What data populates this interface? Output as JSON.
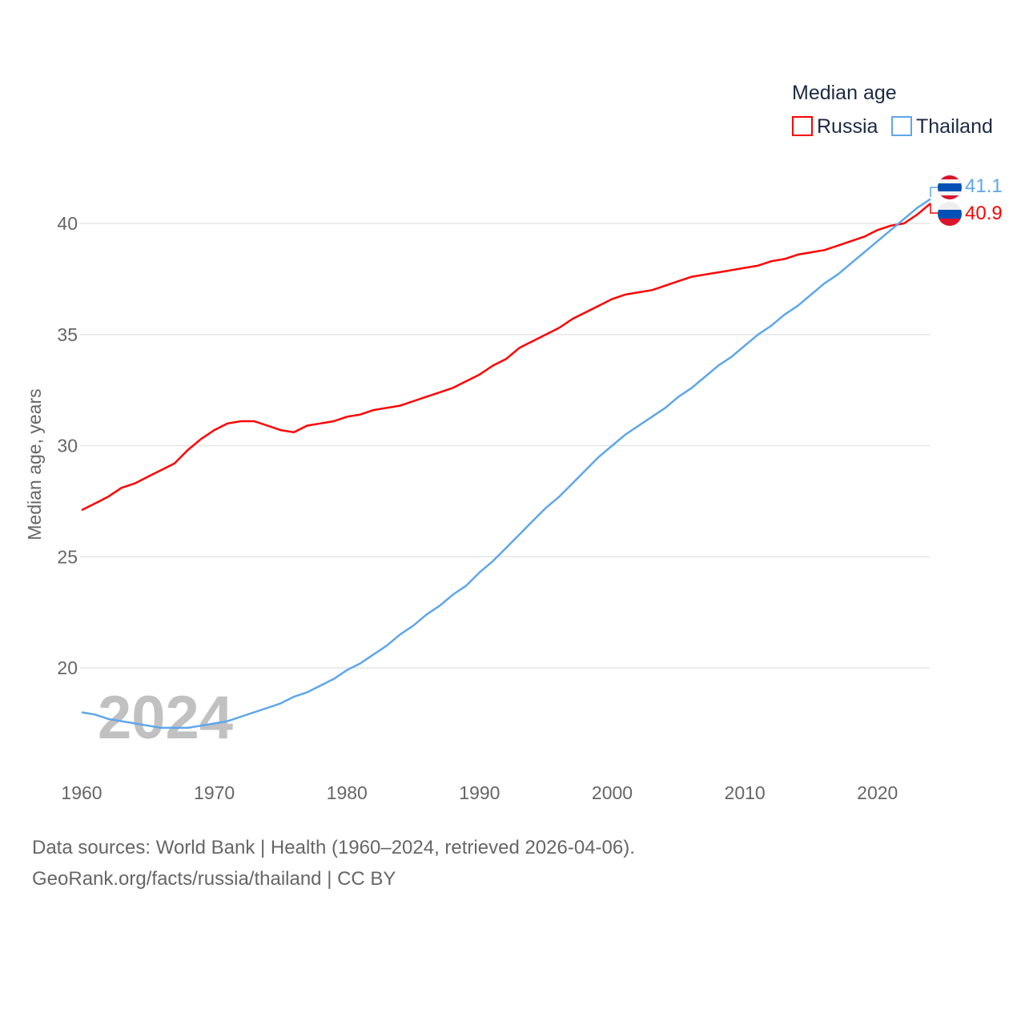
{
  "chart_data": {
    "type": "line",
    "title": "",
    "xlabel": "",
    "ylabel": "Median age, years",
    "xlim": [
      1960,
      2024
    ],
    "ylim": [
      16.5,
      42
    ],
    "grid": true,
    "x_ticks": [
      "1960",
      "1970",
      "1980",
      "1990",
      "2000",
      "2010",
      "2020"
    ],
    "y_ticks": [
      "20",
      "25",
      "30",
      "35",
      "40"
    ],
    "legend": {
      "title": "Median age",
      "placement": "top-right"
    },
    "year_watermark": "2024",
    "x": [
      1960,
      1961,
      1962,
      1963,
      1964,
      1965,
      1966,
      1967,
      1968,
      1969,
      1970,
      1971,
      1972,
      1973,
      1974,
      1975,
      1976,
      1977,
      1978,
      1979,
      1980,
      1981,
      1982,
      1983,
      1984,
      1985,
      1986,
      1987,
      1988,
      1989,
      1990,
      1991,
      1992,
      1993,
      1994,
      1995,
      1996,
      1997,
      1998,
      1999,
      2000,
      2001,
      2002,
      2003,
      2004,
      2005,
      2006,
      2007,
      2008,
      2009,
      2010,
      2011,
      2012,
      2013,
      2014,
      2015,
      2016,
      2017,
      2018,
      2019,
      2020,
      2021,
      2022,
      2023,
      2024
    ],
    "series": [
      {
        "name": "Russia",
        "color": "#ff0000",
        "end_label": "40.9",
        "values": [
          27.1,
          27.4,
          27.7,
          28.1,
          28.3,
          28.6,
          28.9,
          29.2,
          29.8,
          30.3,
          30.7,
          31.0,
          31.1,
          31.1,
          30.9,
          30.7,
          30.6,
          30.9,
          31.0,
          31.1,
          31.3,
          31.4,
          31.6,
          31.7,
          31.8,
          32.0,
          32.2,
          32.4,
          32.6,
          32.9,
          33.2,
          33.6,
          33.9,
          34.4,
          34.7,
          35.0,
          35.3,
          35.7,
          36.0,
          36.3,
          36.6,
          36.8,
          36.9,
          37.0,
          37.2,
          37.4,
          37.6,
          37.7,
          37.8,
          37.9,
          38.0,
          38.1,
          38.3,
          38.4,
          38.6,
          38.7,
          38.8,
          39.0,
          39.2,
          39.4,
          39.7,
          39.9,
          40.0,
          40.4,
          40.9
        ]
      },
      {
        "name": "Thailand",
        "color": "#5ea6ec",
        "end_label": "41.1",
        "values": [
          18.0,
          17.9,
          17.7,
          17.6,
          17.5,
          17.4,
          17.3,
          17.3,
          17.3,
          17.4,
          17.5,
          17.6,
          17.8,
          18.0,
          18.2,
          18.4,
          18.7,
          18.9,
          19.2,
          19.5,
          19.9,
          20.2,
          20.6,
          21.0,
          21.5,
          21.9,
          22.4,
          22.8,
          23.3,
          23.7,
          24.3,
          24.8,
          25.4,
          26.0,
          26.6,
          27.2,
          27.7,
          28.3,
          28.9,
          29.5,
          30.0,
          30.5,
          30.9,
          31.3,
          31.7,
          32.2,
          32.6,
          33.1,
          33.6,
          34.0,
          34.5,
          35.0,
          35.4,
          35.9,
          36.3,
          36.8,
          37.3,
          37.7,
          38.2,
          38.7,
          39.2,
          39.7,
          40.2,
          40.7,
          41.1
        ]
      }
    ]
  },
  "footer": {
    "source_line": "Data sources: World Bank | Health (1960–2024, retrieved 2026-04-06).",
    "attribution_line": "GeoRank.org/facts/russia/thailand | CC BY"
  }
}
